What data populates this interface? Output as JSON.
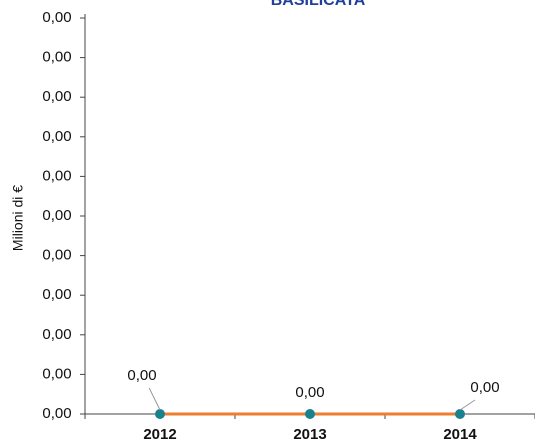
{
  "chart_data": {
    "type": "line",
    "title": "BASILICATA",
    "ylabel": "Milioni di €",
    "categories": [
      "2012",
      "2013",
      "2014"
    ],
    "values": [
      0,
      0,
      0
    ],
    "value_labels": [
      "0,00",
      "0,00",
      "0,00"
    ],
    "color": "#ed7d31",
    "marker_color": "#17818f",
    "ylim": [
      0,
      0.005
    ],
    "yticks": [
      {
        "value": 0,
        "label": "0,00"
      },
      {
        "value": 0.0005,
        "label": "0,00"
      },
      {
        "value": 0.001,
        "label": "0,00"
      },
      {
        "value": 0.0015,
        "label": "0,00"
      },
      {
        "value": 0.002,
        "label": "0,00"
      },
      {
        "value": 0.0025,
        "label": "0,00"
      },
      {
        "value": 0.003,
        "label": "0,00"
      },
      {
        "value": 0.0035,
        "label": "0,00"
      },
      {
        "value": 0.004,
        "label": "0,00"
      },
      {
        "value": 0.0045,
        "label": "0,00"
      },
      {
        "value": 0.005,
        "label": "0,00"
      }
    ]
  }
}
